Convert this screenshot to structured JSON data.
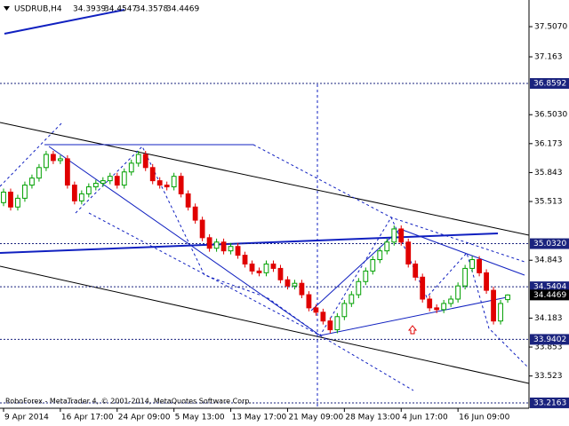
{
  "chart_data": {
    "type": "candlestick",
    "title": "USDRUB,H4",
    "footer": "RoboForex - MetaTrader 4, © 2001-2014, MetaQuotes Software Corp.",
    "open": [
      35.5,
      35.62,
      35.45,
      35.55,
      35.7,
      35.78,
      35.9,
      36.05,
      35.98,
      36.0,
      35.7,
      35.52,
      35.6,
      35.68,
      35.72,
      35.75,
      35.8,
      35.7,
      35.85,
      35.95,
      36.05,
      35.9,
      35.75,
      35.7,
      35.68,
      35.8,
      35.6,
      35.45,
      35.3,
      35.1,
      34.98,
      35.05,
      34.95,
      35.0,
      34.9,
      34.8,
      34.72,
      34.7,
      34.8,
      34.75,
      34.62,
      34.55,
      34.58,
      34.45,
      34.3,
      34.25,
      34.15,
      34.05,
      34.2,
      34.35,
      34.45,
      34.6,
      34.72,
      34.85,
      34.95,
      35.05,
      35.2,
      35.05,
      34.8,
      34.65,
      34.4,
      34.3,
      34.28,
      34.35,
      34.4,
      34.55,
      34.75,
      34.85,
      34.7,
      34.5,
      34.15,
      34.3939
    ],
    "high": [
      35.66,
      35.66,
      35.59,
      35.74,
      35.82,
      35.94,
      36.09,
      36.09,
      36.04,
      36.04,
      35.74,
      35.64,
      35.72,
      35.76,
      35.79,
      35.84,
      35.84,
      35.89,
      35.99,
      36.09,
      36.09,
      35.94,
      35.79,
      35.74,
      35.84,
      35.84,
      35.64,
      35.49,
      35.34,
      35.14,
      35.09,
      35.09,
      35.04,
      35.04,
      34.94,
      34.84,
      34.76,
      34.84,
      34.84,
      34.79,
      34.66,
      34.62,
      34.62,
      34.49,
      34.34,
      34.29,
      34.19,
      34.24,
      34.39,
      34.49,
      34.64,
      34.76,
      34.89,
      34.99,
      35.09,
      35.24,
      35.24,
      35.09,
      34.84,
      34.69,
      34.44,
      34.34,
      34.39,
      34.44,
      34.59,
      34.79,
      34.89,
      34.89,
      34.74,
      34.54,
      34.39,
      34.4547
    ],
    "low": [
      35.46,
      35.41,
      35.41,
      35.51,
      35.66,
      35.74,
      35.86,
      35.94,
      35.94,
      35.66,
      35.48,
      35.48,
      35.56,
      35.64,
      35.68,
      35.71,
      35.66,
      35.66,
      35.81,
      35.91,
      35.86,
      35.71,
      35.66,
      35.64,
      35.64,
      35.56,
      35.41,
      35.26,
      35.06,
      34.94,
      34.94,
      34.91,
      34.91,
      34.86,
      34.76,
      34.68,
      34.66,
      34.66,
      34.71,
      34.58,
      34.51,
      34.51,
      34.41,
      34.26,
      34.21,
      34.11,
      34.01,
      34.01,
      34.16,
      34.31,
      34.41,
      34.56,
      34.68,
      34.81,
      34.91,
      35.01,
      35.01,
      34.76,
      34.61,
      34.36,
      34.26,
      34.24,
      34.24,
      34.31,
      34.36,
      34.51,
      34.71,
      34.66,
      34.46,
      34.11,
      34.11,
      34.3578
    ],
    "close": [
      35.62,
      35.45,
      35.55,
      35.7,
      35.78,
      35.9,
      36.05,
      35.98,
      36.0,
      35.7,
      35.52,
      35.6,
      35.68,
      35.72,
      35.75,
      35.8,
      35.7,
      35.85,
      35.95,
      36.05,
      35.9,
      35.75,
      35.7,
      35.68,
      35.8,
      35.6,
      35.45,
      35.3,
      35.1,
      34.98,
      35.05,
      34.95,
      35.0,
      34.9,
      34.8,
      34.72,
      34.7,
      34.8,
      34.75,
      34.62,
      34.55,
      34.58,
      34.45,
      34.3,
      34.25,
      34.15,
      34.05,
      34.2,
      34.35,
      34.45,
      34.6,
      34.72,
      34.85,
      34.95,
      35.05,
      35.2,
      35.05,
      34.8,
      34.65,
      34.4,
      34.3,
      34.28,
      34.35,
      34.4,
      34.55,
      34.75,
      34.85,
      34.7,
      34.5,
      34.15,
      34.35,
      34.4469
    ],
    "up_color": "#00a000",
    "down_color": "#e00000",
    "xlim": [
      -0.5,
      74
    ],
    "xticks": [
      {
        "value": 0,
        "label": "9 Apr 2014"
      },
      {
        "value": 8,
        "label": "16 Apr 17:00"
      },
      {
        "value": 16,
        "label": "24 Apr 09:00"
      },
      {
        "value": 24,
        "label": "5 May 13:00"
      },
      {
        "value": 32,
        "label": "13 May 17:00"
      },
      {
        "value": 40,
        "label": "21 May 09:00"
      },
      {
        "value": 48,
        "label": "28 May 13:00"
      },
      {
        "value": 56,
        "label": "4 Jun 17:00"
      },
      {
        "value": 64,
        "label": "16 Jun 09:00"
      }
    ],
    "ylim": [
      33.155,
      37.811
    ],
    "yticks": [
      {
        "value": 37.507,
        "label": "37.5070"
      },
      37.163,
      {
        "value": 36.503,
        "label": "36.5030"
      },
      36.173,
      35.843,
      35.513,
      34.843,
      34.183,
      33.853,
      33.523
    ],
    "levels": [
      36.8592,
      {
        "value": 35.032,
        "label": "35.0320"
      },
      34.5404,
      33.9402,
      33.2163
    ]
  }
}
